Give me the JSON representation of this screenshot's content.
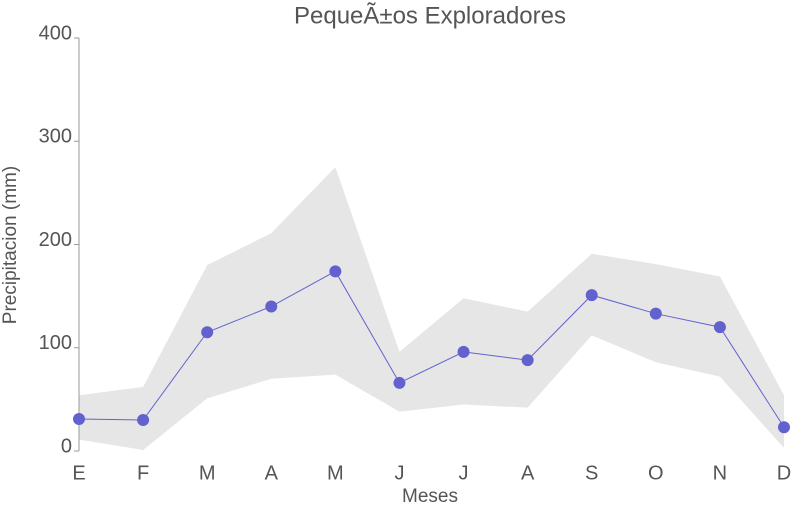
{
  "chart_data": {
    "type": "line",
    "title": "PequeÃ±os Exploradores",
    "x_label": "Meses",
    "y_label": "Precipitacion (mm)",
    "categories": [
      "E",
      "F",
      "M",
      "A",
      "M",
      "J",
      "J",
      "A",
      "S",
      "O",
      "N",
      "D"
    ],
    "series": [
      {
        "color": "#6262cf",
        "values": [
          31,
          30,
          115,
          140,
          174,
          66,
          96,
          88,
          151,
          133,
          120,
          23
        ]
      }
    ],
    "band": {
      "color": "#e6e6e6",
      "upper": [
        54,
        62,
        180,
        211,
        275,
        96,
        148,
        135,
        191,
        181,
        169,
        54
      ],
      "lower": [
        11,
        1,
        51,
        70,
        74,
        38,
        45,
        42,
        112,
        86,
        72,
        3
      ]
    },
    "ylim": [
      0,
      400
    ],
    "yticks": [
      0,
      100,
      200,
      300,
      400
    ]
  }
}
